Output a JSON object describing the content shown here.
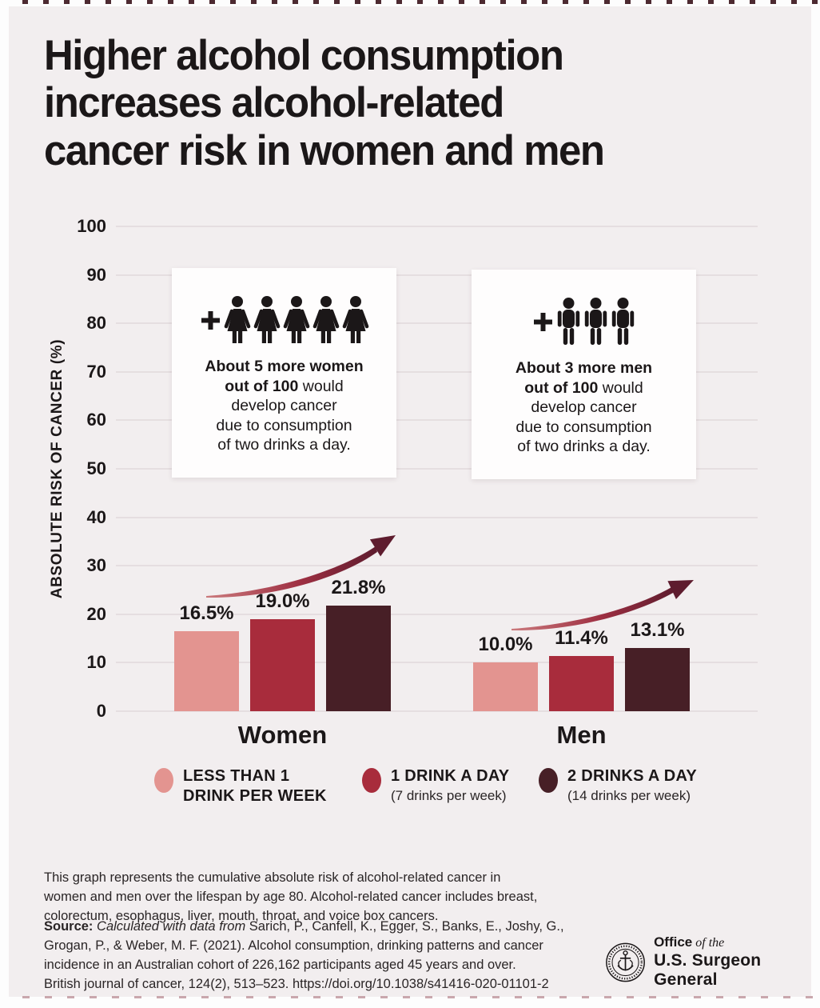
{
  "title": {
    "lines": [
      "Higher alcohol consumption",
      "increases alcohol-related",
      "cancer risk in women and men"
    ]
  },
  "chart_data": {
    "type": "bar",
    "title": "Higher alcohol consumption increases alcohol-related cancer risk in women and men",
    "xlabel": "",
    "ylabel": "ABSOLUTE RISK OF CANCER (%)",
    "ylim": [
      0,
      100
    ],
    "ytick_step": 10,
    "grid": true,
    "legend_position": "bottom",
    "categories": [
      "Women",
      "Men"
    ],
    "series": [
      {
        "name": "LESS THAN 1 DRINK PER WEEK",
        "color": "#e39490",
        "values": [
          16.5,
          10.0
        ],
        "value_labels": [
          "16.5%",
          "10.0%"
        ]
      },
      {
        "name": "1 DRINK A DAY (7 drinks per week)",
        "color": "#a82c3c",
        "values": [
          19.0,
          11.4
        ],
        "value_labels": [
          "19.0%",
          "11.4%"
        ]
      },
      {
        "name": "2 DRINKS A DAY (14 drinks per week)",
        "color": "#471f26",
        "values": [
          21.8,
          13.1
        ],
        "value_labels": [
          "21.8%",
          "13.1%"
        ]
      }
    ],
    "annotations": [
      "rising-trend-arrow-over-women-bars",
      "rising-trend-arrow-over-men-bars"
    ]
  },
  "colors": {
    "poster_background": "#f2eeef",
    "bar_light": "#e39490",
    "bar_mid": "#a82c3c",
    "bar_dark": "#471f26",
    "arrow_dark": "#5e1c2e",
    "text": "#1b1718",
    "gridline": "#e5dee0"
  },
  "callouts": [
    {
      "icon": "woman",
      "icon_count": 5,
      "text_lines": [
        {
          "bold": "About 5 more women",
          "normal": ""
        },
        {
          "bold": "out of 100",
          "normal": " would"
        },
        {
          "bold": "",
          "normal": "develop cancer"
        },
        {
          "bold": "",
          "normal": "due to consumption"
        },
        {
          "bold": "",
          "normal": "of two drinks a day."
        }
      ]
    },
    {
      "icon": "man",
      "icon_count": 3,
      "text_lines": [
        {
          "bold": "About 3 more men",
          "normal": ""
        },
        {
          "bold": "out of 100",
          "normal": " would"
        },
        {
          "bold": "",
          "normal": "develop cancer"
        },
        {
          "bold": "",
          "normal": "due to consumption"
        },
        {
          "bold": "",
          "normal": "of two drinks a day."
        }
      ]
    }
  ],
  "legend": {
    "items": [
      {
        "label_lines": [
          "LESS THAN 1",
          "DRINK PER WEEK"
        ],
        "sublabel": "",
        "color": "#e39490"
      },
      {
        "label_lines": [
          "1 DRINK A DAY"
        ],
        "sublabel": "(7 drinks per week)",
        "color": "#a82c3c"
      },
      {
        "label_lines": [
          "2 DRINKS A DAY"
        ],
        "sublabel": "(14 drinks per week)",
        "color": "#471f26"
      }
    ]
  },
  "footer": {
    "description_lines": [
      "This graph represents the cumulative absolute risk of alcohol-related cancer in",
      "women and men over the lifespan by age 80. Alcohol-related cancer includes breast,",
      "colorectum, esophagus, liver, mouth, throat, and voice box cancers."
    ],
    "source_label": "Source:",
    "source_italic": " Calculated with data from",
    "source_lines": [
      " Sarich, P., Canfell, K., Egger, S., Banks, E., Joshy, G.,",
      "Grogan, P., & Weber, M. F. (2021). Alcohol consumption, drinking patterns and cancer",
      "incidence in an Australian cohort of 226,162 participants aged 45 years and over.",
      "British journal of cancer, 124(2), 513–523. https://doi.org/10.1038/s41416-020-01101-2"
    ]
  },
  "logo": {
    "line1_bold": "Office",
    "line1_italic": " of the",
    "line2": "U.S. Surgeon General"
  }
}
